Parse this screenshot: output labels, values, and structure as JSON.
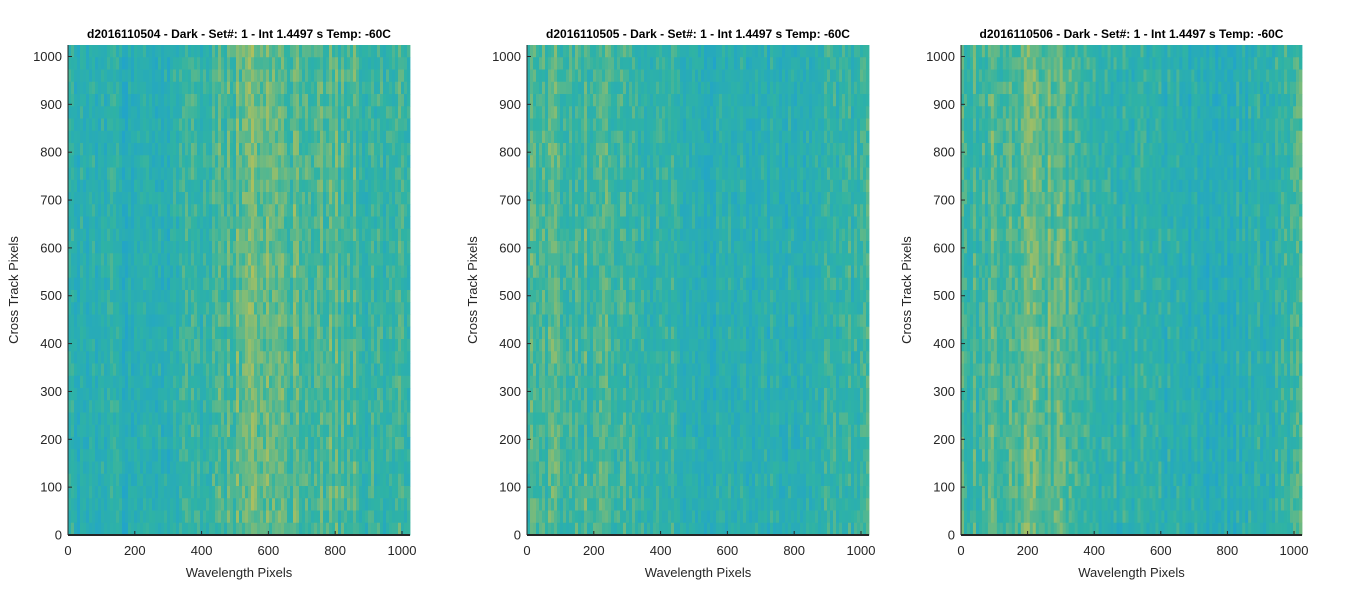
{
  "colors": {
    "cmap_low": "#1d9fd6",
    "cmap_mid": "#2fb3a4",
    "cmap_high": "#d5c448",
    "axis": "#262626"
  },
  "chart_data": [
    {
      "type": "heatmap",
      "title": "d2016110504 - Dark - Set#: 1 - Int 1.4497 s Temp: -60C",
      "xlabel": "Wavelength Pixels",
      "ylabel": "Cross Track Pixels",
      "xlim": [
        0,
        1024
      ],
      "ylim": [
        0,
        1024
      ],
      "xticks": [
        "0",
        "200",
        "400",
        "600",
        "800",
        "1000"
      ],
      "yticks": [
        "0",
        "100",
        "200",
        "300",
        "400",
        "500",
        "600",
        "700",
        "800",
        "900",
        "1000"
      ],
      "column_profile": [
        0.4,
        0.38,
        0.36,
        0.35,
        0.36,
        0.42,
        0.48,
        0.56,
        0.72,
        0.68,
        0.6,
        0.55,
        0.58,
        0.52,
        0.5,
        0.55
      ]
    },
    {
      "type": "heatmap",
      "title": "d2016110505 - Dark - Set#: 1 - Int 1.4497 s Temp: -60C",
      "xlabel": "Wavelength Pixels",
      "ylabel": "Cross Track Pixels",
      "xlim": [
        0,
        1024
      ],
      "ylim": [
        0,
        1024
      ],
      "xticks": [
        "0",
        "200",
        "400",
        "600",
        "800",
        "1000"
      ],
      "yticks": [
        "0",
        "100",
        "200",
        "300",
        "400",
        "500",
        "600",
        "700",
        "800",
        "900",
        "1000"
      ],
      "column_profile": [
        0.55,
        0.55,
        0.56,
        0.55,
        0.52,
        0.5,
        0.46,
        0.42,
        0.38,
        0.34,
        0.32,
        0.36,
        0.4,
        0.44,
        0.48,
        0.52
      ]
    },
    {
      "type": "heatmap",
      "title": "d2016110506 - Dark - Set#: 1 - Int 1.4497 s Temp: -60C",
      "xlabel": "Wavelength Pixels",
      "ylabel": "Cross Track Pixels",
      "xlim": [
        0,
        1024
      ],
      "ylim": [
        0,
        1024
      ],
      "xticks": [
        "0",
        "200",
        "400",
        "600",
        "800",
        "1000"
      ],
      "yticks": [
        "0",
        "100",
        "200",
        "300",
        "400",
        "500",
        "600",
        "700",
        "800",
        "900",
        "1000"
      ],
      "column_profile": [
        0.52,
        0.56,
        0.6,
        0.64,
        0.62,
        0.55,
        0.48,
        0.44,
        0.42,
        0.38,
        0.32,
        0.3,
        0.36,
        0.4,
        0.44,
        0.48
      ]
    }
  ]
}
